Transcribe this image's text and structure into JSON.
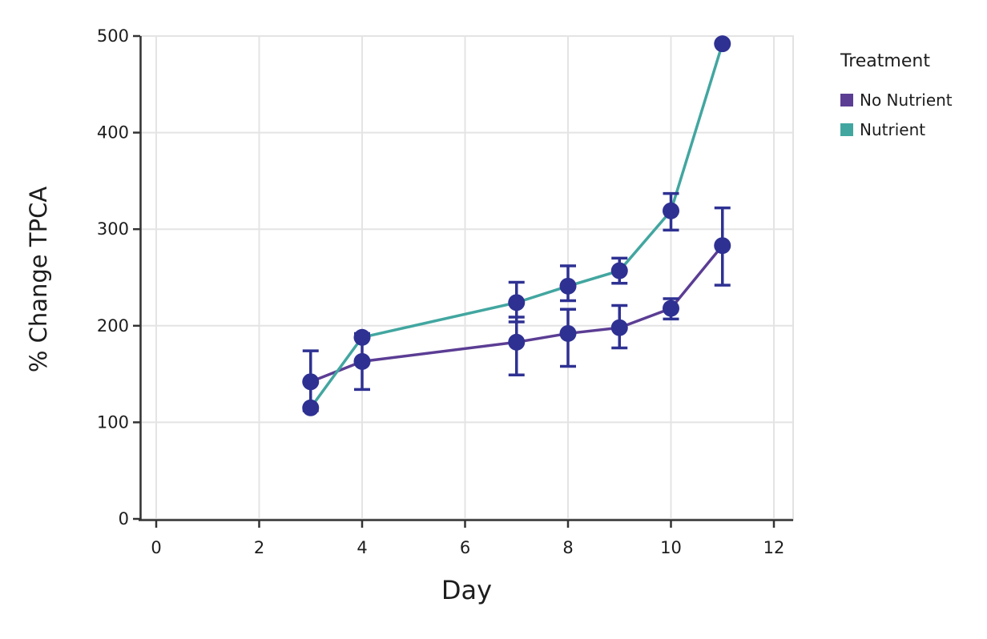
{
  "chart_data": {
    "type": "line",
    "title": "",
    "xlabel": "Day",
    "ylabel": "% Change TPCA",
    "xlim": [
      -0.35,
      12.4
    ],
    "ylim": [
      0,
      500
    ],
    "x_ticks": [
      0,
      2,
      4,
      6,
      8,
      10,
      12
    ],
    "y_ticks": [
      0,
      100,
      200,
      300,
      400,
      500
    ],
    "grid": true,
    "legend": {
      "title": "Treatment",
      "position": "right"
    },
    "colors": {
      "point": "#2e3192",
      "error_bar": "#2e3192",
      "gridline": "#e4e4e4",
      "panel_border": "#e2e2e2",
      "axis": "#333333",
      "text": "#1d1d1d"
    },
    "series": [
      {
        "name": "No Nutrient",
        "color": "#5b3d94",
        "x": [
          3,
          4,
          7,
          8,
          9,
          10,
          11
        ],
        "y": [
          142,
          163,
          183,
          192,
          198,
          218,
          283
        ],
        "err_low": [
          112,
          134,
          149,
          158,
          177,
          207,
          242
        ],
        "err_high": [
          174,
          192,
          209,
          217,
          221,
          228,
          322
        ]
      },
      {
        "name": "Nutrient",
        "color": "#42a6a0",
        "x": [
          3,
          4,
          7,
          8,
          9,
          10,
          11
        ],
        "y": [
          115,
          188,
          224,
          241,
          257,
          319,
          492
        ],
        "err_low": [
          null,
          null,
          204,
          226,
          244,
          299,
          null
        ],
        "err_high": [
          null,
          null,
          245,
          262,
          270,
          337,
          null
        ]
      }
    ]
  }
}
